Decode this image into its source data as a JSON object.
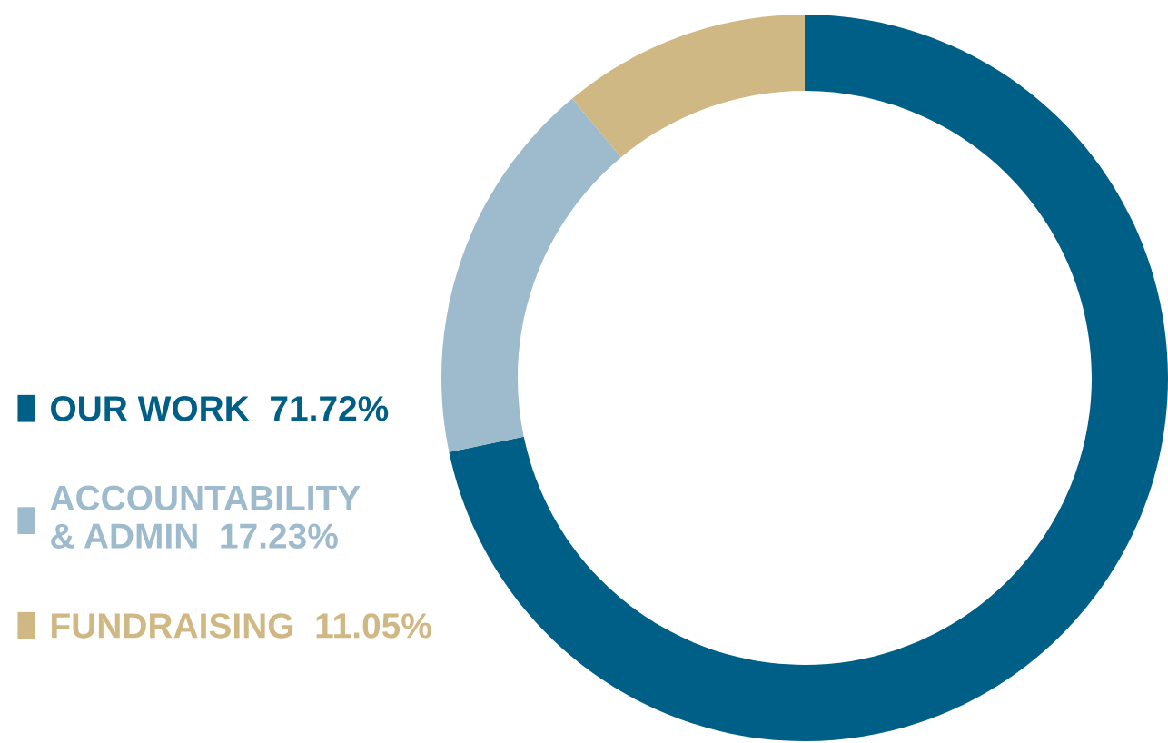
{
  "chart_data": {
    "type": "donut",
    "categories": [
      "OUR WORK",
      "ACCOUNTABILITY\n& ADMIN",
      "FUNDRAISING"
    ],
    "values": [
      71.72,
      17.23,
      11.05
    ],
    "value_labels": [
      "71.72%",
      "17.23%",
      "11.05%"
    ],
    "colors": [
      "#005f86",
      "#9dbbcd",
      "#cfb883"
    ],
    "legend": "left"
  }
}
